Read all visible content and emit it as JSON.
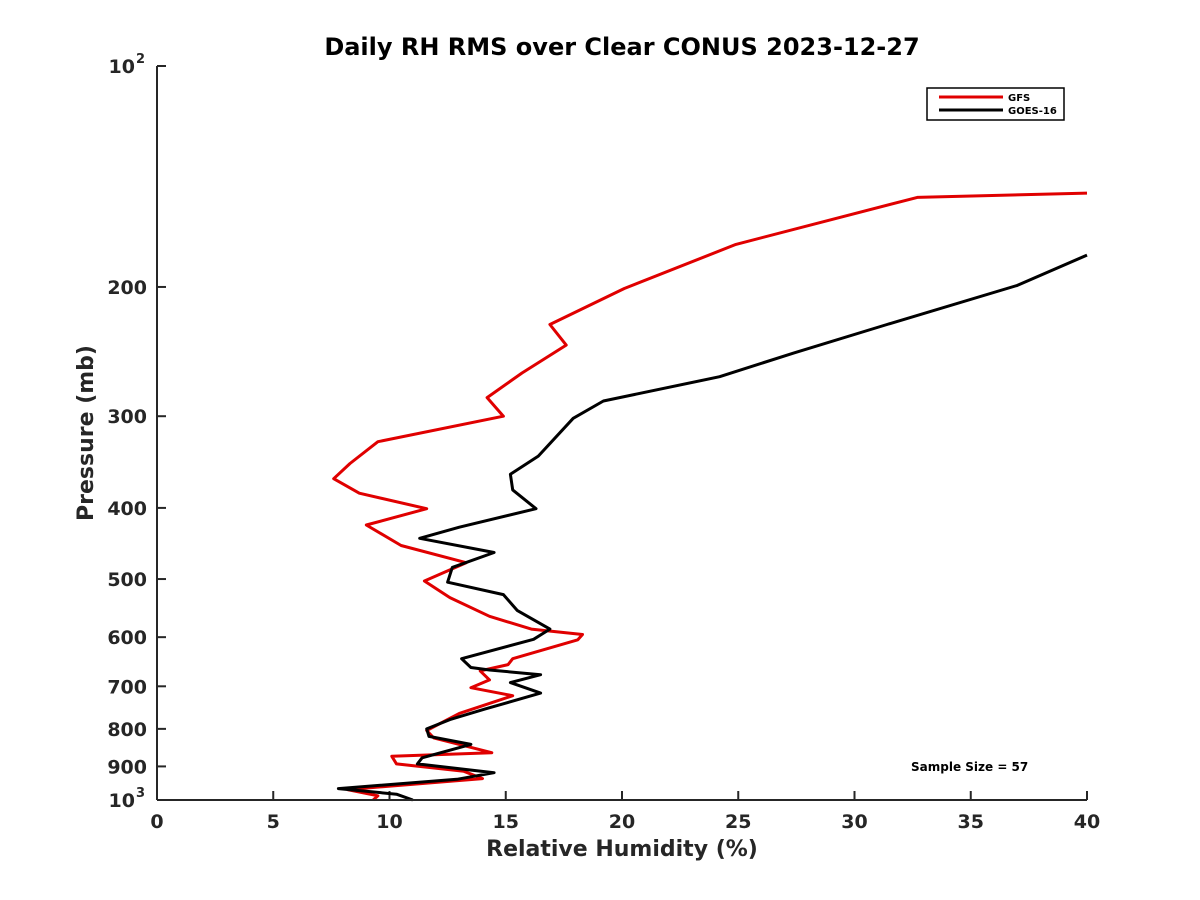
{
  "chart_data": {
    "type": "line",
    "title": "Daily RH RMS over Clear CONUS 2023-12-27",
    "xlabel": "Relative Humidity (%)",
    "ylabel": "Pressure (mb)",
    "xlim": [
      0,
      40
    ],
    "ylim": [
      100,
      1000
    ],
    "y_scale": "log",
    "y_reversed": true,
    "grid": false,
    "legend_position": "top-right",
    "x_ticks": [
      "0",
      "5",
      "10",
      "15",
      "20",
      "25",
      "30",
      "35",
      "40"
    ],
    "y_ticks": [
      {
        "value": 200,
        "label": "200"
      },
      {
        "value": 300,
        "label": "300"
      },
      {
        "value": 400,
        "label": "400"
      },
      {
        "value": 500,
        "label": "500"
      },
      {
        "value": 600,
        "label": "600"
      },
      {
        "value": 700,
        "label": "700"
      },
      {
        "value": 800,
        "label": "800"
      },
      {
        "value": 900,
        "label": "900"
      }
    ],
    "y_ticks_power": [
      {
        "value": 100,
        "base": "10",
        "exp": "2"
      },
      {
        "value": 1000,
        "base": "10",
        "exp": "3"
      }
    ],
    "annotation": "Sample Size = 57",
    "series": [
      {
        "name": "GFS",
        "color": "#e00000",
        "points": [
          [
            40.0,
            149
          ],
          [
            32.7,
            151
          ],
          [
            24.9,
            175
          ],
          [
            20.1,
            201
          ],
          [
            16.9,
            225
          ],
          [
            17.6,
            240
          ],
          [
            15.7,
            262
          ],
          [
            14.2,
            283
          ],
          [
            14.9,
            300
          ],
          [
            9.5,
            325
          ],
          [
            8.3,
            348
          ],
          [
            7.6,
            365
          ],
          [
            8.7,
            382
          ],
          [
            11.6,
            401
          ],
          [
            9.0,
            422
          ],
          [
            10.5,
            450
          ],
          [
            13.3,
            475
          ],
          [
            11.5,
            503
          ],
          [
            12.6,
            530
          ],
          [
            14.3,
            562
          ],
          [
            16.1,
            585
          ],
          [
            18.3,
            595
          ],
          [
            18.1,
            605
          ],
          [
            15.3,
            642
          ],
          [
            15.1,
            654
          ],
          [
            13.9,
            667
          ],
          [
            14.3,
            686
          ],
          [
            13.5,
            703
          ],
          [
            15.3,
            721
          ],
          [
            13.0,
            762
          ],
          [
            11.6,
            804
          ],
          [
            11.9,
            823
          ],
          [
            14.4,
            862
          ],
          [
            10.1,
            872
          ],
          [
            10.3,
            893
          ],
          [
            13.2,
            914
          ],
          [
            14.0,
            935
          ],
          [
            8.2,
            968
          ],
          [
            9.5,
            987
          ],
          [
            9.3,
            1000
          ]
        ]
      },
      {
        "name": "GOES-16",
        "color": "#000000",
        "points": [
          [
            40.0,
            181
          ],
          [
            37.0,
            199
          ],
          [
            31.4,
            225
          ],
          [
            27.4,
            246
          ],
          [
            24.2,
            265
          ],
          [
            19.2,
            286
          ],
          [
            17.9,
            302
          ],
          [
            16.4,
            340
          ],
          [
            15.2,
            360
          ],
          [
            15.3,
            378
          ],
          [
            16.3,
            401
          ],
          [
            13.0,
            425
          ],
          [
            11.3,
            440
          ],
          [
            14.5,
            460
          ],
          [
            12.7,
            482
          ],
          [
            12.5,
            505
          ],
          [
            14.9,
            525
          ],
          [
            15.5,
            552
          ],
          [
            16.9,
            585
          ],
          [
            16.2,
            604
          ],
          [
            13.1,
            642
          ],
          [
            13.5,
            660
          ],
          [
            14.3,
            665
          ],
          [
            16.5,
            675
          ],
          [
            15.2,
            692
          ],
          [
            16.5,
            715
          ],
          [
            14.1,
            752
          ],
          [
            12.6,
            777
          ],
          [
            11.6,
            800
          ],
          [
            11.7,
            819
          ],
          [
            13.5,
            840
          ],
          [
            11.4,
            876
          ],
          [
            11.2,
            893
          ],
          [
            14.5,
            918
          ],
          [
            12.9,
            937
          ],
          [
            7.8,
            965
          ],
          [
            10.3,
            982
          ],
          [
            11.0,
            1000
          ]
        ]
      }
    ]
  }
}
